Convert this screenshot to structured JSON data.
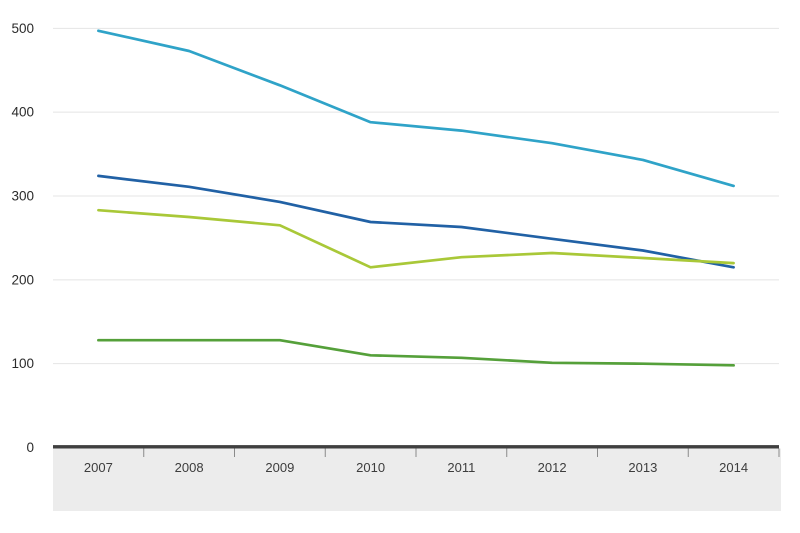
{
  "chart_data": {
    "type": "line",
    "title": "",
    "xlabel": "",
    "ylabel": "",
    "x_categories": [
      "2007",
      "2008",
      "2009",
      "2010",
      "2011",
      "2012",
      "2013",
      "2014"
    ],
    "y_ticks": [
      0,
      100,
      200,
      300,
      400,
      500
    ],
    "ylim": [
      0,
      500
    ],
    "grid": "horizontal-light-gray",
    "legend": "none",
    "markers": "none",
    "series": [
      {
        "name": "light-blue-line",
        "color": "#2fa3c8",
        "values": [
          497,
          473,
          432,
          388,
          378,
          363,
          343,
          312
        ]
      },
      {
        "name": "dark-blue-line",
        "color": "#2161a5",
        "values": [
          324,
          311,
          293,
          269,
          263,
          249,
          235,
          215
        ]
      },
      {
        "name": "lime-green-line",
        "color": "#a9c838",
        "values": [
          283,
          275,
          265,
          215,
          227,
          232,
          226,
          220
        ]
      },
      {
        "name": "dark-green-line",
        "color": "#55a03a",
        "values": [
          128,
          128,
          128,
          110,
          107,
          101,
          100,
          98
        ]
      }
    ],
    "colors": {
      "background": "#ffffff",
      "gridline": "#e4e4e4",
      "zero_axis_bar": "#3f3f3f",
      "x_axis_band": "#ececec",
      "tick_mark": "#8a8a8a",
      "y_label_text": "#2b2b2b",
      "x_label_text": "#3d3d3d"
    }
  }
}
